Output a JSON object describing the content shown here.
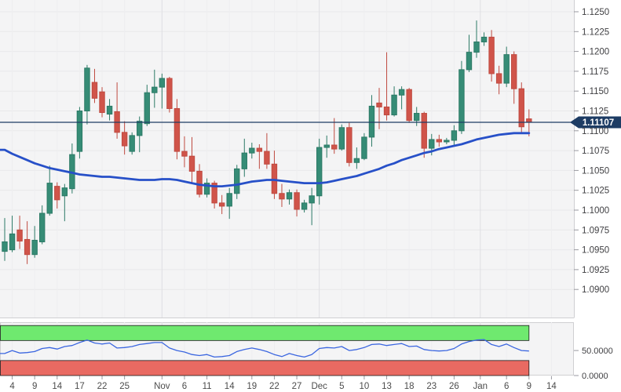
{
  "colors": {
    "page_bg": "#ffffff",
    "panel_bg": "#f4f4f5",
    "panel_border": "#cfcfd2",
    "grid": "#e8e8ea",
    "grid_month": "#dfdfe3",
    "bull_fill": "#368c76",
    "bull_border": "#2c7a66",
    "bear_fill": "#d0544a",
    "bear_border": "#bf4a40",
    "ma_line": "#2750c8",
    "last_price": "#1d3c64",
    "badge_text": "#ffffff",
    "band_green": "#6fe96f",
    "band_red": "#e96a62",
    "band_border": "#1a1a1a",
    "rsi_line": "#3b66e0",
    "axis_text": "#3f3f42",
    "axis_tick": "#9a9aa0"
  },
  "chart_data": [
    {
      "type": "candlestick",
      "panel": "price",
      "legend_position": "none",
      "grid": true,
      "y_axis": {
        "side": "right",
        "min": 1.0875,
        "max": 1.1262,
        "tick_labels": [
          "1.1250",
          "1.1225",
          "1.1200",
          "1.1175",
          "1.1150",
          "1.1125",
          "1.1100",
          "1.1075",
          "1.1050",
          "1.1025",
          "1.1000",
          "1.0975",
          "1.0950",
          "1.0925",
          "1.0900"
        ],
        "tick_values": [
          1.125,
          1.1225,
          1.12,
          1.1175,
          1.115,
          1.1125,
          1.11,
          1.1075,
          1.105,
          1.1025,
          1.1,
          1.0975,
          1.095,
          1.0925,
          1.09
        ]
      },
      "x_axis": {
        "labels": [
          {
            "text": "4",
            "i": 1
          },
          {
            "text": "9",
            "i": 4
          },
          {
            "text": "14",
            "i": 7
          },
          {
            "text": "17",
            "i": 10
          },
          {
            "text": "22",
            "i": 13
          },
          {
            "text": "25",
            "i": 16
          },
          {
            "text": "Nov",
            "i": 21,
            "month": true
          },
          {
            "text": "6",
            "i": 24
          },
          {
            "text": "11",
            "i": 27
          },
          {
            "text": "14",
            "i": 30
          },
          {
            "text": "19",
            "i": 33
          },
          {
            "text": "22",
            "i": 36
          },
          {
            "text": "27",
            "i": 39
          },
          {
            "text": "Dec",
            "i": 42,
            "month": true
          },
          {
            "text": "5",
            "i": 45
          },
          {
            "text": "10",
            "i": 48
          },
          {
            "text": "13",
            "i": 51
          },
          {
            "text": "18",
            "i": 54
          },
          {
            "text": "23",
            "i": 57
          },
          {
            "text": "26",
            "i": 60
          },
          {
            "text": "Jan",
            "i": 63.5,
            "month": true
          },
          {
            "text": "6",
            "i": 67
          },
          {
            "text": "9",
            "i": 70
          },
          {
            "text": "14",
            "i": 73
          }
        ]
      },
      "last_price": {
        "label": "1.11107",
        "value": 1.11107
      },
      "series": [
        {
          "name": "candles",
          "data": [
            {
              "d": "Oct 3",
              "o": 1.0948,
              "h": 1.099,
              "l": 1.0936,
              "c": 1.096
            },
            {
              "d": "Oct 4",
              "o": 1.095,
              "h": 1.0993,
              "l": 1.0947,
              "c": 1.097
            },
            {
              "d": "Oct 7",
              "o": 1.0975,
              "h": 1.0993,
              "l": 1.0951,
              "c": 1.0961
            },
            {
              "d": "Oct 8",
              "o": 1.0963,
              "h": 1.0986,
              "l": 1.0932,
              "c": 1.0944
            },
            {
              "d": "Oct 9",
              "o": 1.0944,
              "h": 1.098,
              "l": 1.094,
              "c": 1.0962
            },
            {
              "d": "Oct 10",
              "o": 1.096,
              "h": 1.1006,
              "l": 1.0957,
              "c": 1.0996
            },
            {
              "d": "Oct 11",
              "o": 1.0996,
              "h": 1.1056,
              "l": 1.0993,
              "c": 1.1034
            },
            {
              "d": "Oct 14",
              "o": 1.103,
              "h": 1.1035,
              "l": 1.1002,
              "c": 1.1013
            },
            {
              "d": "Oct 15",
              "o": 1.1018,
              "h": 1.1033,
              "l": 1.0986,
              "c": 1.1028
            },
            {
              "d": "Oct 16",
              "o": 1.1027,
              "h": 1.1084,
              "l": 1.1021,
              "c": 1.107
            },
            {
              "d": "Oct 17",
              "o": 1.1074,
              "h": 1.113,
              "l": 1.1065,
              "c": 1.1125
            },
            {
              "d": "Oct 18",
              "o": 1.1125,
              "h": 1.1183,
              "l": 1.1108,
              "c": 1.1179
            },
            {
              "d": "Oct 21",
              "o": 1.1161,
              "h": 1.1178,
              "l": 1.1135,
              "c": 1.1141
            },
            {
              "d": "Oct 22",
              "o": 1.1149,
              "h": 1.1155,
              "l": 1.1117,
              "c": 1.1123
            },
            {
              "d": "Oct 23",
              "o": 1.1121,
              "h": 1.114,
              "l": 1.1113,
              "c": 1.1131
            },
            {
              "d": "Oct 24",
              "o": 1.1124,
              "h": 1.1161,
              "l": 1.109,
              "c": 1.1098
            },
            {
              "d": "Oct 25",
              "o": 1.1098,
              "h": 1.1112,
              "l": 1.107,
              "c": 1.1081
            },
            {
              "d": "Oct 28",
              "o": 1.1074,
              "h": 1.1098,
              "l": 1.107,
              "c": 1.1094
            },
            {
              "d": "Oct 29",
              "o": 1.1094,
              "h": 1.1118,
              "l": 1.1073,
              "c": 1.1112
            },
            {
              "d": "Oct 30",
              "o": 1.1109,
              "h": 1.1158,
              "l": 1.1106,
              "c": 1.1148
            },
            {
              "d": "Oct 31",
              "o": 1.1148,
              "h": 1.1177,
              "l": 1.1129,
              "c": 1.1155
            },
            {
              "d": "Nov 1",
              "o": 1.1155,
              "h": 1.1172,
              "l": 1.1128,
              "c": 1.1166
            },
            {
              "d": "Nov 4",
              "o": 1.1166,
              "h": 1.1168,
              "l": 1.1123,
              "c": 1.1128
            },
            {
              "d": "Nov 5",
              "o": 1.1128,
              "h": 1.114,
              "l": 1.1064,
              "c": 1.1074
            },
            {
              "d": "Nov 6",
              "o": 1.1074,
              "h": 1.1093,
              "l": 1.1054,
              "c": 1.1068
            },
            {
              "d": "Nov 7",
              "o": 1.1068,
              "h": 1.1092,
              "l": 1.1035,
              "c": 1.1049
            },
            {
              "d": "Nov 8",
              "o": 1.1049,
              "h": 1.1058,
              "l": 1.1016,
              "c": 1.102
            },
            {
              "d": "Nov 11",
              "o": 1.102,
              "h": 1.104,
              "l": 1.1016,
              "c": 1.1034
            },
            {
              "d": "Nov 12",
              "o": 1.1034,
              "h": 1.1037,
              "l": 1.1002,
              "c": 1.1009
            },
            {
              "d": "Nov 13",
              "o": 1.1009,
              "h": 1.1019,
              "l": 1.0995,
              "c": 1.1005
            },
            {
              "d": "Nov 14",
              "o": 1.1005,
              "h": 1.1028,
              "l": 1.0989,
              "c": 1.1021
            },
            {
              "d": "Nov 15",
              "o": 1.1021,
              "h": 1.1057,
              "l": 1.1014,
              "c": 1.1052
            },
            {
              "d": "Nov 18",
              "o": 1.1052,
              "h": 1.109,
              "l": 1.1042,
              "c": 1.1072
            },
            {
              "d": "Nov 19",
              "o": 1.1072,
              "h": 1.1085,
              "l": 1.1065,
              "c": 1.1078
            },
            {
              "d": "Nov 20",
              "o": 1.1078,
              "h": 1.1083,
              "l": 1.1052,
              "c": 1.1074
            },
            {
              "d": "Nov 21",
              "o": 1.1074,
              "h": 1.1097,
              "l": 1.1052,
              "c": 1.1058
            },
            {
              "d": "Nov 22",
              "o": 1.1058,
              "h": 1.1075,
              "l": 1.1014,
              "c": 1.1021
            },
            {
              "d": "Nov 25",
              "o": 1.1021,
              "h": 1.1033,
              "l": 1.1004,
              "c": 1.1014
            },
            {
              "d": "Nov 26",
              "o": 1.1014,
              "h": 1.1026,
              "l": 1.1007,
              "c": 1.1022
            },
            {
              "d": "Nov 27",
              "o": 1.1022,
              "h": 1.1026,
              "l": 1.0992,
              "c": 1.1001
            },
            {
              "d": "Nov 28",
              "o": 1.1001,
              "h": 1.1013,
              "l": 1.0997,
              "c": 1.1009
            },
            {
              "d": "Nov 29",
              "o": 1.1009,
              "h": 1.1028,
              "l": 1.0981,
              "c": 1.1018
            },
            {
              "d": "Dec 2",
              "o": 1.1018,
              "h": 1.109,
              "l": 1.1007,
              "c": 1.1079
            },
            {
              "d": "Dec 3",
              "o": 1.1079,
              "h": 1.1094,
              "l": 1.1066,
              "c": 1.1082
            },
            {
              "d": "Dec 4",
              "o": 1.1082,
              "h": 1.1116,
              "l": 1.1071,
              "c": 1.1077
            },
            {
              "d": "Dec 5",
              "o": 1.1077,
              "h": 1.1108,
              "l": 1.1075,
              "c": 1.1104
            },
            {
              "d": "Dec 6",
              "o": 1.1104,
              "h": 1.111,
              "l": 1.1055,
              "c": 1.106
            },
            {
              "d": "Dec 9",
              "o": 1.106,
              "h": 1.1079,
              "l": 1.1052,
              "c": 1.1065
            },
            {
              "d": "Dec 10",
              "o": 1.1065,
              "h": 1.1097,
              "l": 1.1063,
              "c": 1.1092
            },
            {
              "d": "Dec 11",
              "o": 1.1092,
              "h": 1.1145,
              "l": 1.108,
              "c": 1.1131
            },
            {
              "d": "Dec 12",
              "o": 1.1135,
              "h": 1.1154,
              "l": 1.1102,
              "c": 1.113
            },
            {
              "d": "Dec 13",
              "o": 1.113,
              "h": 1.1199,
              "l": 1.1113,
              "c": 1.112
            },
            {
              "d": "Dec 16",
              "o": 1.112,
              "h": 1.1156,
              "l": 1.1118,
              "c": 1.1145
            },
            {
              "d": "Dec 17",
              "o": 1.1145,
              "h": 1.1156,
              "l": 1.1127,
              "c": 1.1152
            },
            {
              "d": "Dec 18",
              "o": 1.1152,
              "h": 1.1154,
              "l": 1.111,
              "c": 1.1113
            },
            {
              "d": "Dec 19",
              "o": 1.1113,
              "h": 1.113,
              "l": 1.1106,
              "c": 1.1122
            },
            {
              "d": "Dec 20",
              "o": 1.1122,
              "h": 1.1124,
              "l": 1.1066,
              "c": 1.1078
            },
            {
              "d": "Dec 23",
              "o": 1.1078,
              "h": 1.1096,
              "l": 1.1069,
              "c": 1.1089
            },
            {
              "d": "Dec 24",
              "o": 1.1089,
              "h": 1.1095,
              "l": 1.108,
              "c": 1.1086
            },
            {
              "d": "Dec 25",
              "o": 1.1086,
              "h": 1.1091,
              "l": 1.1083,
              "c": 1.1088
            },
            {
              "d": "Dec 26",
              "o": 1.1088,
              "h": 1.1107,
              "l": 1.108,
              "c": 1.11
            },
            {
              "d": "Dec 27",
              "o": 1.11,
              "h": 1.1188,
              "l": 1.1096,
              "c": 1.1177
            },
            {
              "d": "Dec 30",
              "o": 1.1177,
              "h": 1.1221,
              "l": 1.1174,
              "c": 1.1199
            },
            {
              "d": "Dec 31",
              "o": 1.1199,
              "h": 1.1239,
              "l": 1.1192,
              "c": 1.1212
            },
            {
              "d": "Jan 1",
              "o": 1.1212,
              "h": 1.1224,
              "l": 1.1207,
              "c": 1.1218
            },
            {
              "d": "Jan 2",
              "o": 1.1218,
              "h": 1.1227,
              "l": 1.1162,
              "c": 1.1172
            },
            {
              "d": "Jan 3",
              "o": 1.1172,
              "h": 1.1182,
              "l": 1.1146,
              "c": 1.116
            },
            {
              "d": "Jan 6",
              "o": 1.116,
              "h": 1.1206,
              "l": 1.1155,
              "c": 1.1196
            },
            {
              "d": "Jan 7",
              "o": 1.1196,
              "h": 1.12,
              "l": 1.1134,
              "c": 1.1153
            },
            {
              "d": "Jan 8",
              "o": 1.1153,
              "h": 1.1161,
              "l": 1.1097,
              "c": 1.1105
            },
            {
              "d": "Jan 9",
              "o": 1.1115,
              "h": 1.1127,
              "l": 1.1093,
              "c": 1.11107
            }
          ]
        },
        {
          "name": "moving-average",
          "values": [
            1.1076,
            1.1071,
            1.1067,
            1.1063,
            1.1059,
            1.1056,
            1.1053,
            1.1051,
            1.1049,
            1.1047,
            1.1045,
            1.1044,
            1.1043,
            1.1042,
            1.1042,
            1.1041,
            1.104,
            1.1039,
            1.1038,
            1.1038,
            1.1038,
            1.1039,
            1.1039,
            1.1038,
            1.1036,
            1.1034,
            1.1032,
            1.1031,
            1.103,
            1.103,
            1.1031,
            1.1032,
            1.1034,
            1.1036,
            1.1037,
            1.1038,
            1.1038,
            1.1037,
            1.1036,
            1.1035,
            1.1034,
            1.1034,
            1.1034,
            1.1035,
            1.1037,
            1.1039,
            1.1041,
            1.1043,
            1.1046,
            1.1049,
            1.1052,
            1.1056,
            1.1059,
            1.1063,
            1.1066,
            1.1069,
            1.1072,
            1.1074,
            1.1077,
            1.1079,
            1.1081,
            1.1083,
            1.1086,
            1.1089,
            1.1091,
            1.1093,
            1.1095,
            1.1096,
            1.1097,
            1.1097,
            1.1097
          ]
        }
      ]
    },
    {
      "type": "line",
      "panel": "indicator",
      "name": "oscillator",
      "y_axis": {
        "side": "right",
        "min": 0,
        "max": 110,
        "ticks": [
          {
            "text": "50.0000",
            "v": 50
          },
          {
            "text": "0.0000",
            "v": 0
          }
        ]
      },
      "bands": [
        {
          "name": "overbought",
          "from": 70,
          "to": 100,
          "color_key": "band_green"
        },
        {
          "name": "oversold",
          "from": 0,
          "to": 30,
          "color_key": "band_red"
        }
      ],
      "values": [
        44,
        50,
        45,
        46,
        48,
        54,
        56,
        53,
        58,
        60,
        66,
        71,
        65,
        63,
        65,
        55,
        56,
        58,
        62,
        64,
        66,
        66,
        55,
        50,
        47,
        42,
        40,
        42,
        37,
        38,
        40,
        48,
        52,
        55,
        52,
        48,
        42,
        38,
        44,
        40,
        37,
        42,
        54,
        56,
        55,
        58,
        50,
        52,
        56,
        62,
        63,
        60,
        62,
        64,
        58,
        59,
        52,
        50,
        49,
        50,
        54,
        63,
        68,
        71,
        72,
        62,
        58,
        63,
        56,
        50,
        49
      ]
    }
  ]
}
